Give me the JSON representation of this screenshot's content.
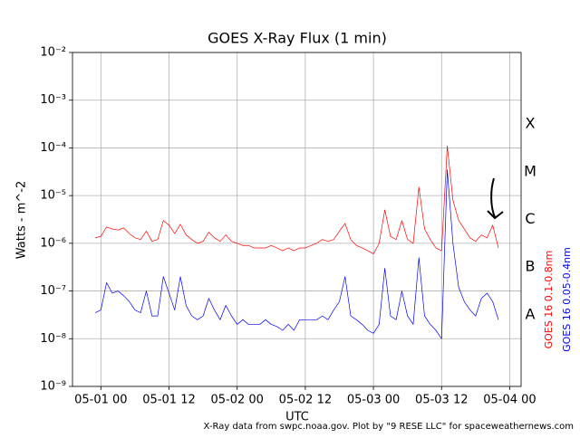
{
  "chart_data": {
    "type": "line",
    "title": "GOES X-Ray Flux (1 min)",
    "x_label": "UTC",
    "y_label": "Watts - m^-2",
    "footer": "X-Ray data from swpc.noaa.gov. Plot by \"9 RESE LLC\" for spaceweathernews.com",
    "yscale": "log",
    "grid": true,
    "ylim": [
      1e-09,
      0.01
    ],
    "yticks": [
      {
        "value": 1e-09,
        "label": "10⁻⁹"
      },
      {
        "value": 1e-08,
        "label": "10⁻⁸"
      },
      {
        "value": 1e-07,
        "label": "10⁻⁷"
      },
      {
        "value": 1e-06,
        "label": "10⁻⁶"
      },
      {
        "value": 1e-05,
        "label": "10⁻⁵"
      },
      {
        "value": 0.0001,
        "label": "10⁻⁴"
      },
      {
        "value": 0.001,
        "label": "10⁻³"
      },
      {
        "value": 0.01,
        "label": "10⁻²"
      }
    ],
    "xlim": [
      "04-30 19",
      "05-04 02"
    ],
    "xticks": [
      "05-01 00",
      "05-01 12",
      "05-02 00",
      "05-02 12",
      "05-03 00",
      "05-03 12",
      "05-04 00"
    ],
    "flare_classes": [
      {
        "label": "A",
        "value": 1e-08
      },
      {
        "label": "B",
        "value": 1e-07
      },
      {
        "label": "C",
        "value": 1e-06
      },
      {
        "label": "M",
        "value": 1e-05
      },
      {
        "label": "X",
        "value": 0.0001
      }
    ],
    "x": [
      "04-30 23",
      "05-01 00",
      "05-01 01",
      "05-01 02",
      "05-01 03",
      "05-01 04",
      "05-01 05",
      "05-01 06",
      "05-01 07",
      "05-01 08",
      "05-01 09",
      "05-01 10",
      "05-01 11",
      "05-01 12",
      "05-01 13",
      "05-01 14",
      "05-01 15",
      "05-01 16",
      "05-01 17",
      "05-01 18",
      "05-01 19",
      "05-01 20",
      "05-01 21",
      "05-01 22",
      "05-01 23",
      "05-02 00",
      "05-02 01",
      "05-02 02",
      "05-02 03",
      "05-02 04",
      "05-02 05",
      "05-02 06",
      "05-02 07",
      "05-02 08",
      "05-02 09",
      "05-02 10",
      "05-02 11",
      "05-02 12",
      "05-02 13",
      "05-02 14",
      "05-02 15",
      "05-02 16",
      "05-02 17",
      "05-02 18",
      "05-02 19",
      "05-02 20",
      "05-02 21",
      "05-02 22",
      "05-02 23",
      "05-03 00",
      "05-03 01",
      "05-03 02",
      "05-03 03",
      "05-03 04",
      "05-03 05",
      "05-03 06",
      "05-03 07",
      "05-03 08",
      "05-03 09",
      "05-03 10",
      "05-03 11",
      "05-03 12",
      "05-03 13",
      "05-03 14",
      "05-03 15",
      "05-03 16",
      "05-03 17",
      "05-03 18",
      "05-03 19",
      "05-03 20",
      "05-03 21",
      "05-03 22"
    ],
    "series": [
      {
        "name": "GOES 16 0.1-0.8nm",
        "color": "#ff0000",
        "values": [
          1.3e-06,
          1.4e-06,
          2.2e-06,
          2e-06,
          1.9e-06,
          2.1e-06,
          1.6e-06,
          1.3e-06,
          1.2e-06,
          1.8e-06,
          1.1e-06,
          1.2e-06,
          3e-06,
          2.4e-06,
          1.6e-06,
          2.5e-06,
          1.5e-06,
          1.2e-06,
          1e-06,
          1.1e-06,
          1.7e-06,
          1.3e-06,
          1.1e-06,
          1.5e-06,
          1.1e-06,
          1e-06,
          9e-07,
          9e-07,
          8e-07,
          8e-07,
          8e-07,
          9e-07,
          8e-07,
          7e-07,
          8e-07,
          7e-07,
          8e-07,
          8e-07,
          9e-07,
          1e-06,
          1.2e-06,
          1.1e-06,
          1.2e-06,
          1.8e-06,
          2.6e-06,
          1.2e-06,
          9e-07,
          8e-07,
          7e-07,
          6e-07,
          1e-06,
          5e-06,
          1.4e-06,
          1.2e-06,
          3e-06,
          1.2e-06,
          1e-06,
          1.5e-05,
          2e-06,
          1.2e-06,
          8e-07,
          7e-07,
          0.00011,
          8e-06,
          3e-06,
          2e-06,
          1.3e-06,
          1.1e-06,
          1.5e-06,
          1.3e-06,
          2.4e-06,
          8e-07
        ]
      },
      {
        "name": "GOES 16 0.05-0.4nm",
        "color": "#0000ff",
        "values": [
          3.5e-08,
          4e-08,
          1.5e-07,
          9e-08,
          1e-07,
          8e-08,
          6e-08,
          4e-08,
          3.5e-08,
          1e-07,
          3e-08,
          3e-08,
          2e-07,
          9e-08,
          4e-08,
          2e-07,
          5e-08,
          3e-08,
          2.5e-08,
          3e-08,
          7e-08,
          4e-08,
          2.5e-08,
          5e-08,
          3e-08,
          2e-08,
          2.5e-08,
          2e-08,
          2e-08,
          2e-08,
          2.5e-08,
          2e-08,
          1.8e-08,
          1.5e-08,
          2e-08,
          1.5e-08,
          2.5e-08,
          2.5e-08,
          2.5e-08,
          2.5e-08,
          3e-08,
          2.5e-08,
          4e-08,
          6e-08,
          2e-07,
          3e-08,
          2.5e-08,
          2e-08,
          1.5e-08,
          1.3e-08,
          2e-08,
          3e-07,
          3e-08,
          2.5e-08,
          1e-07,
          3e-08,
          2e-08,
          5e-07,
          3e-08,
          2e-08,
          1.5e-08,
          1e-08,
          3.5e-05,
          1e-06,
          1.2e-07,
          6e-08,
          4e-08,
          3e-08,
          7e-08,
          9e-08,
          6e-08,
          2.5e-08
        ]
      }
    ]
  }
}
